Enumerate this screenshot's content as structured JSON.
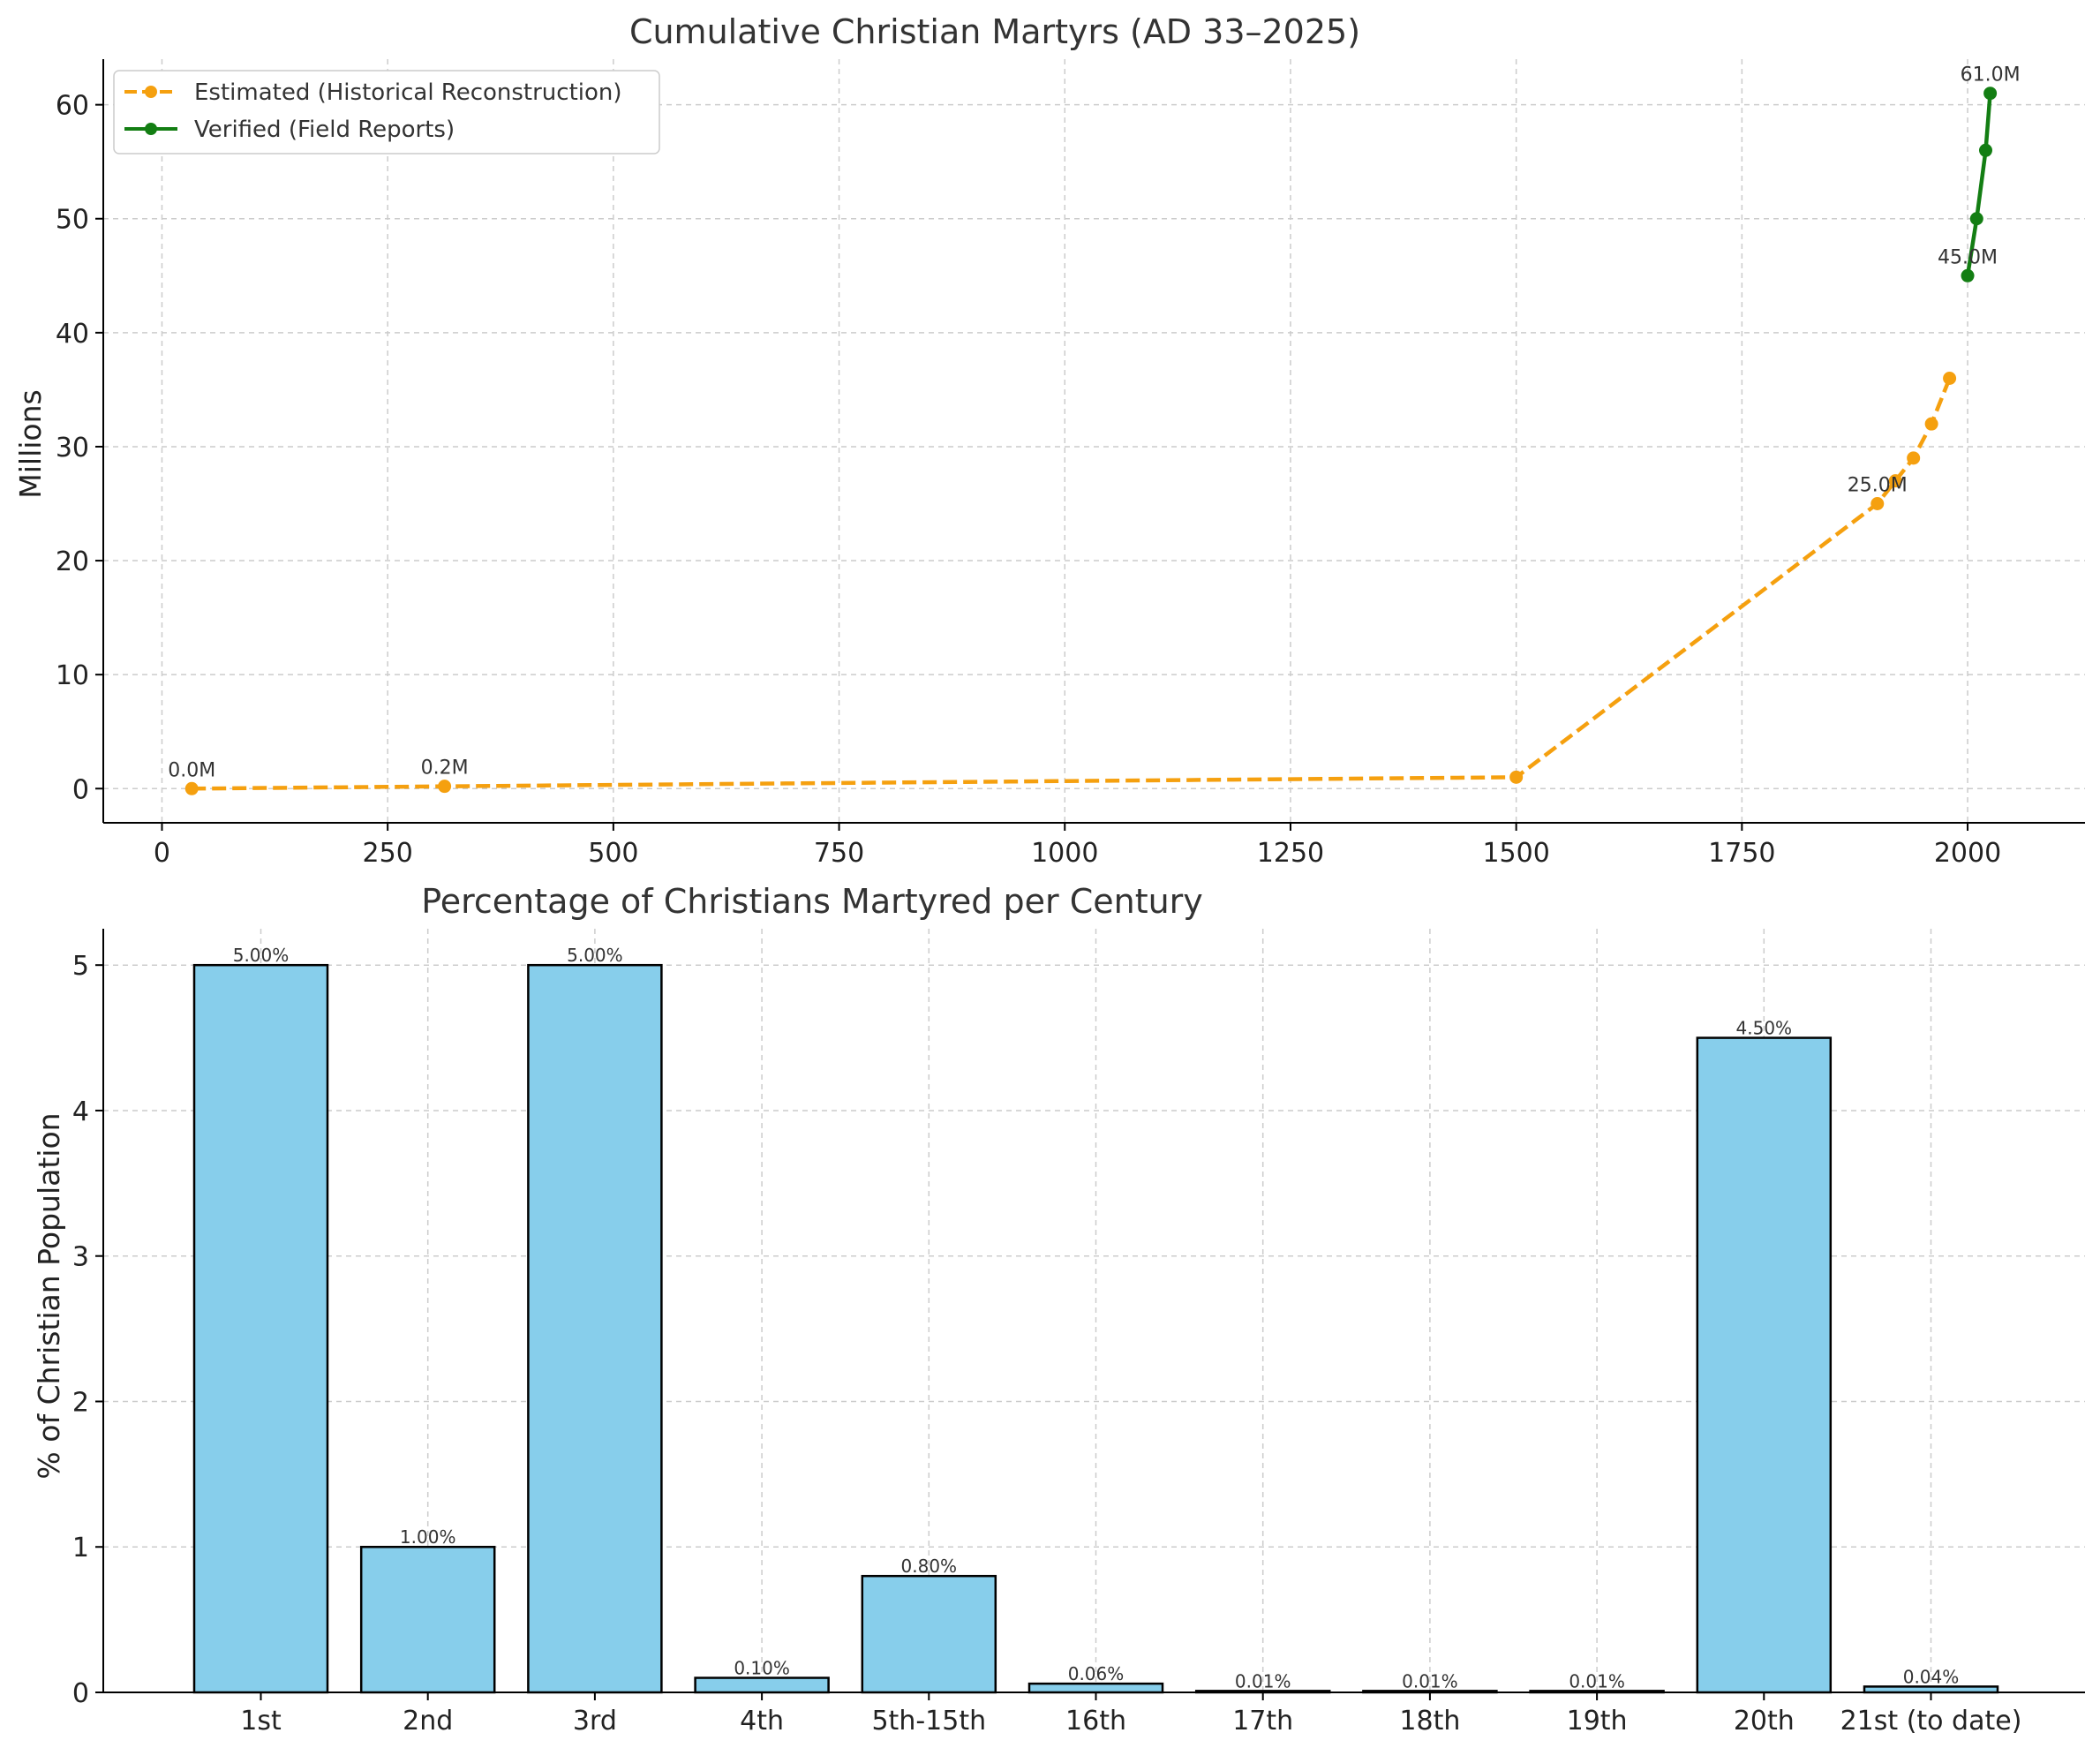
{
  "chart_data": [
    {
      "type": "line",
      "title": "Cumulative Christian Martyrs (AD 33–2025)",
      "xlabel": "",
      "ylabel": "Millions",
      "xlim": [
        -65,
        2130
      ],
      "ylim": [
        -3,
        64
      ],
      "xticks": [
        0,
        250,
        500,
        750,
        1000,
        1250,
        1500,
        1750,
        2000
      ],
      "yticks": [
        0,
        10,
        20,
        30,
        40,
        50,
        60
      ],
      "grid": true,
      "legend": "top-left",
      "series": [
        {
          "name": "Estimated (Historical Reconstruction)",
          "color": "#f5a00f",
          "style": "dashed",
          "x": [
            33,
            313,
            1500,
            1900,
            1920,
            1940,
            1960,
            1980
          ],
          "y": [
            0.0,
            0.2,
            1.0,
            25.0,
            27.0,
            29.0,
            32.0,
            36.0
          ],
          "annotations": [
            {
              "x": 33,
              "y": 0.0,
              "text": "0.0M"
            },
            {
              "x": 313,
              "y": 0.2,
              "text": "0.2M"
            },
            {
              "x": 1900,
              "y": 25.0,
              "text": "25.0M"
            }
          ]
        },
        {
          "name": "Verified (Field Reports)",
          "color": "#137e13",
          "style": "solid",
          "x": [
            2000,
            2010,
            2020,
            2025
          ],
          "y": [
            45.0,
            50.0,
            56.0,
            61.0
          ],
          "annotations": [
            {
              "x": 2000,
              "y": 45.0,
              "text": "45.0M"
            },
            {
              "x": 2025,
              "y": 61.0,
              "text": "61.0M"
            }
          ]
        }
      ]
    },
    {
      "type": "bar",
      "title": "Percentage of Christians Martyred per Century",
      "xlabel": "",
      "ylabel": "% of Christian Population",
      "ylim": [
        0,
        5.25
      ],
      "yticks": [
        0,
        1,
        2,
        3,
        4,
        5
      ],
      "grid": true,
      "bar_color": "#87ceeb",
      "categories": [
        "1st",
        "2nd",
        "3rd",
        "4th",
        "5th-15th",
        "16th",
        "17th",
        "18th",
        "19th",
        "20th",
        "21st (to date)"
      ],
      "values": [
        5.0,
        1.0,
        5.0,
        0.1,
        0.8,
        0.06,
        0.01,
        0.01,
        0.01,
        4.5,
        0.04
      ],
      "value_labels": [
        "5.00%",
        "1.00%",
        "5.00%",
        "0.10%",
        "0.80%",
        "0.06%",
        "0.01%",
        "0.01%",
        "0.01%",
        "4.50%",
        "0.04%"
      ]
    }
  ]
}
